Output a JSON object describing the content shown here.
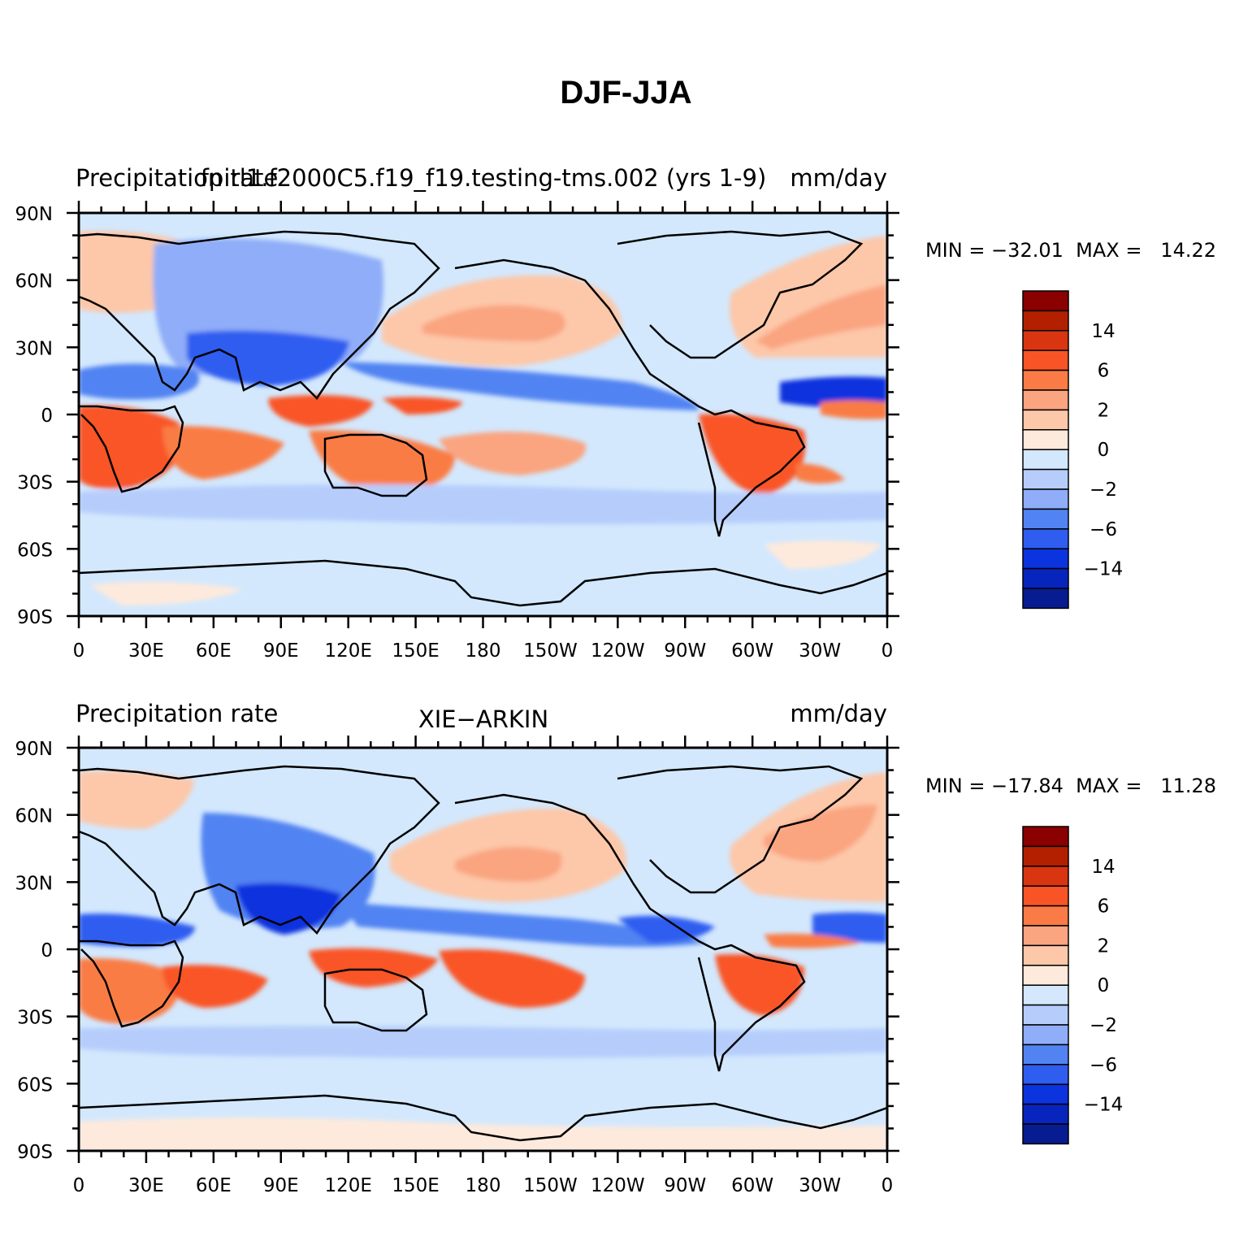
{
  "figure": {
    "title": "DJF-JJA",
    "panels": [
      {
        "id": "model",
        "left_label": "Precipitation rate",
        "center_label": "fpitl1.f2000C5.f19_f19.testing-tms.002 (yrs 1-9)",
        "right_label": "mm/day",
        "stats": "MIN = −32.01  MAX =   14.22"
      },
      {
        "id": "obs",
        "left_label": "Precipitation rate",
        "center_label": "XIE−ARKIN",
        "right_label": "mm/day",
        "stats": "MIN = −17.84  MAX =   11.28"
      }
    ],
    "lon_tick_labels": [
      "0",
      "30E",
      "60E",
      "90E",
      "120E",
      "150E",
      "180",
      "150W",
      "120W",
      "90W",
      "60W",
      "30W",
      "0"
    ],
    "lat_tick_labels": [
      "90N",
      "60N",
      "30N",
      "0",
      "30S",
      "60S",
      "90S"
    ],
    "colorbar": {
      "colors": [
        "#8b0000",
        "#b22000",
        "#d83510",
        "#f95426",
        "#fa7b45",
        "#faa480",
        "#fdc7a9",
        "#feeadc",
        "#d3e8fd",
        "#b6cdfc",
        "#8fadf8",
        "#5183f2",
        "#2e5df0",
        "#0b33de",
        "#0725bd",
        "#071c90"
      ],
      "labels": [
        "14",
        "6",
        "2",
        "0",
        "−2",
        "−6",
        "−14"
      ]
    },
    "palette": {
      "ocean_neutral": "#d3e8fd",
      "coast": "#000000"
    }
  }
}
